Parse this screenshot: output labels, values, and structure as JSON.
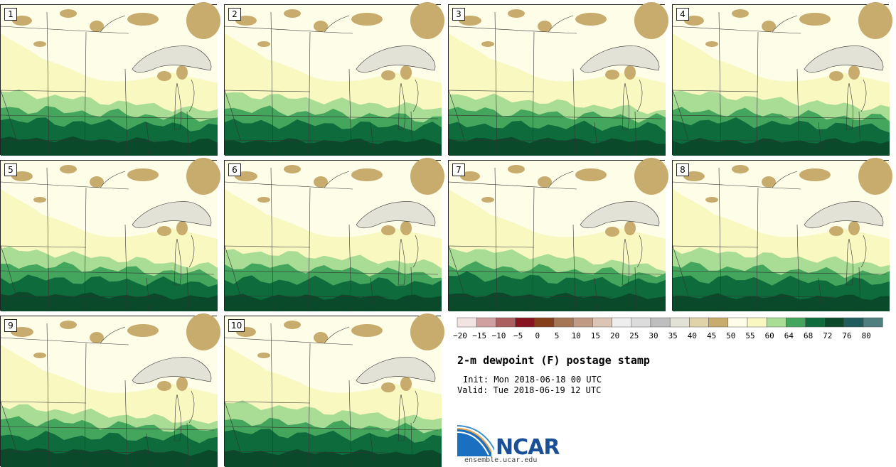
{
  "panels": [
    {
      "label": "1",
      "variant": 0
    },
    {
      "label": "2",
      "variant": 1
    },
    {
      "label": "3",
      "variant": 2
    },
    {
      "label": "4",
      "variant": 3
    },
    {
      "label": "5",
      "variant": 4
    },
    {
      "label": "6",
      "variant": 5
    },
    {
      "label": "7",
      "variant": 6
    },
    {
      "label": "8",
      "variant": 7
    },
    {
      "label": "9",
      "variant": 8
    },
    {
      "label": "10",
      "variant": 9
    }
  ],
  "colorbar": {
    "colors": [
      "#f3e4e4",
      "#d0a0a0",
      "#ac5f5f",
      "#861520",
      "#85401a",
      "#a67755",
      "#c19a84",
      "#dcc5b5",
      "#eeeeee",
      "#dcdcdc",
      "#bebebe",
      "#e2e2d6",
      "#e0d3a9",
      "#c8ac6d",
      "#fefde8",
      "#f8f8c0",
      "#a9dc94",
      "#44a65c",
      "#0e6c3c",
      "#0a4a2b",
      "#1f5c5c",
      "#4f7f7f"
    ],
    "ticks": [
      "−20",
      "−15",
      "−10",
      "−5",
      "0",
      "5",
      "10",
      "15",
      "20",
      "25",
      "30",
      "35",
      "40",
      "45",
      "50",
      "55",
      "60",
      "64",
      "68",
      "72",
      "76",
      "80"
    ]
  },
  "field_colors": {
    "dry": "#c8ac6d",
    "lake": "#e2e2d6",
    "pale": "#fefde8",
    "light": "#f8f8c0",
    "mid": "#a9dc94",
    "green": "#44a65c",
    "dark": "#0e6c3c",
    "darkest": "#0a4a2b",
    "boundary": "#333333"
  },
  "title": "2-m dewpoint (F) postage stamp",
  "init": "Init: Mon 2018-06-18 00 UTC",
  "valid": "Valid: Tue 2018-06-19 12 UTC",
  "logo": {
    "name": "NCAR",
    "url": "ensemble.ucar.edu",
    "blue": "#1b4f96",
    "light_blue": "#3a8fd0"
  }
}
